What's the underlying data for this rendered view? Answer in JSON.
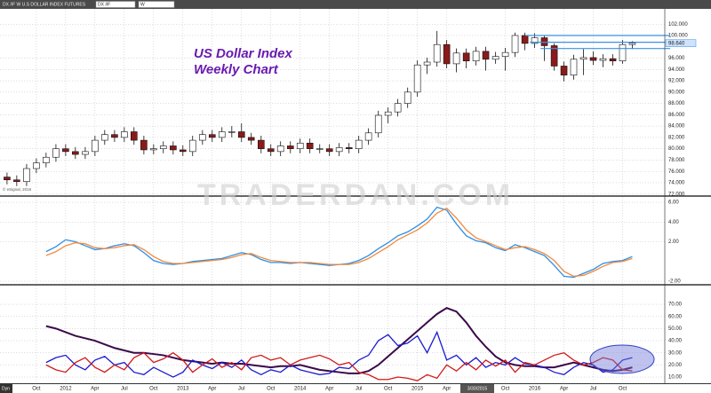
{
  "window": {
    "title": "DX #F W U.S DOLLAR INDEX FUTURES",
    "symbol": "DX #F",
    "interval": "W"
  },
  "chart_data": [
    {
      "type": "candlestick",
      "title": "US Dollar Index",
      "subtitle": "Weekly Chart",
      "title_color": "#6a1bb0",
      "watermark": "TRADERDAN.COM",
      "copyright": "© eSignal, 2016",
      "x": [
        2011.5,
        2011.583,
        2011.667,
        2011.75,
        2011.833,
        2011.917,
        2012.0,
        2012.083,
        2012.167,
        2012.25,
        2012.333,
        2012.417,
        2012.5,
        2012.583,
        2012.667,
        2012.75,
        2012.833,
        2012.917,
        2013.0,
        2013.083,
        2013.167,
        2013.25,
        2013.333,
        2013.417,
        2013.5,
        2013.583,
        2013.667,
        2013.75,
        2013.833,
        2013.917,
        2014.0,
        2014.083,
        2014.167,
        2014.25,
        2014.333,
        2014.417,
        2014.5,
        2014.583,
        2014.667,
        2014.75,
        2014.833,
        2014.917,
        2015.0,
        2015.083,
        2015.167,
        2015.25,
        2015.333,
        2015.417,
        2015.5,
        2015.583,
        2015.667,
        2015.75,
        2015.833,
        2015.917,
        2016.0,
        2016.083,
        2016.167,
        2016.25,
        2016.333,
        2016.417,
        2016.5,
        2016.583,
        2016.667,
        2016.75,
        2016.833
      ],
      "open": [
        75.0,
        74.5,
        74.2,
        76.5,
        77.5,
        78.5,
        80.0,
        79.5,
        79.0,
        79.5,
        81.5,
        82.5,
        82.0,
        83.0,
        81.5,
        79.8,
        80.0,
        80.5,
        79.8,
        79.5,
        81.5,
        82.5,
        82.0,
        83.0,
        83.0,
        82.0,
        81.5,
        80.0,
        79.5,
        80.5,
        80.0,
        81.0,
        80.0,
        80.0,
        79.5,
        80.2,
        80.0,
        81.5,
        82.8,
        85.9,
        86.5,
        88.0,
        90.0,
        94.8,
        95.3,
        98.4,
        95.0,
        96.9,
        95.5,
        97.2,
        95.8,
        96.3,
        97.0,
        100.0,
        98.6,
        99.6,
        98.2,
        94.6,
        93.0,
        95.8,
        96.1,
        95.6,
        95.9,
        95.5,
        98.4
      ],
      "high": [
        75.8,
        75.3,
        77.3,
        78.3,
        79.3,
        80.8,
        80.8,
        80.3,
        80.3,
        82.3,
        83.3,
        83.3,
        83.8,
        83.8,
        82.3,
        80.8,
        81.3,
        81.3,
        80.6,
        82.3,
        83.3,
        83.3,
        83.8,
        84.0,
        84.5,
        82.8,
        82.3,
        80.8,
        81.3,
        81.3,
        81.8,
        81.8,
        80.8,
        80.8,
        81.0,
        81.0,
        82.3,
        83.6,
        86.7,
        87.3,
        88.8,
        90.8,
        95.6,
        96.1,
        100.8,
        99.2,
        97.7,
        97.7,
        98.0,
        98.0,
        97.1,
        97.8,
        100.5,
        100.5,
        100.4,
        100.0,
        98.6,
        95.4,
        96.6,
        97.6,
        97.2,
        96.7,
        96.7,
        99.2,
        99.0
      ],
      "low": [
        73.7,
        73.4,
        73.4,
        75.7,
        76.7,
        77.7,
        78.7,
        78.2,
        78.2,
        78.7,
        80.7,
        81.2,
        81.2,
        80.7,
        79.0,
        79.0,
        79.2,
        79.0,
        78.7,
        78.7,
        80.7,
        81.2,
        81.2,
        82.0,
        81.2,
        80.7,
        79.2,
        78.7,
        78.7,
        79.2,
        79.2,
        79.2,
        79.2,
        78.7,
        78.7,
        79.2,
        79.2,
        80.7,
        82.0,
        84.5,
        85.7,
        87.2,
        89.2,
        93.2,
        94.5,
        94.2,
        93.5,
        94.2,
        94.7,
        93.8,
        95.0,
        93.8,
        96.2,
        97.4,
        97.8,
        95.5,
        93.8,
        91.9,
        92.2,
        93.0,
        94.8,
        94.4,
        94.7,
        95.0,
        97.6
      ],
      "close": [
        74.5,
        74.2,
        76.5,
        77.5,
        78.5,
        80.0,
        79.5,
        79.0,
        79.5,
        81.5,
        82.5,
        82.0,
        83.0,
        81.5,
        79.8,
        80.0,
        80.5,
        79.8,
        79.5,
        81.5,
        82.5,
        82.0,
        83.0,
        83.0,
        82.0,
        81.5,
        80.0,
        79.5,
        80.5,
        80.0,
        81.0,
        80.0,
        80.0,
        79.5,
        80.2,
        80.0,
        81.5,
        82.8,
        85.9,
        86.5,
        88.0,
        90.0,
        94.8,
        95.3,
        98.4,
        95.0,
        96.9,
        95.5,
        97.2,
        95.8,
        96.3,
        97.0,
        100.0,
        98.6,
        99.6,
        98.2,
        94.6,
        93.0,
        95.8,
        96.1,
        95.6,
        95.9,
        95.5,
        98.4,
        98.64
      ],
      "last_label": "98.640",
      "up_color": "#ffffff",
      "down_color": "#8b1a1a",
      "levels": [
        100.0,
        98.8,
        97.7
      ],
      "level_starts": [
        2015.92,
        2015.96,
        2016.05
      ],
      "level_color": "#3b8fe0",
      "xlim": [
        2011.44,
        2017.11
      ],
      "ylim": [
        71.8,
        104.7
      ],
      "yticks": [
        {
          "value": 72,
          "label": "72.000"
        },
        {
          "value": 74,
          "label": "74.000"
        },
        {
          "value": 76,
          "label": "76.000"
        },
        {
          "value": 78,
          "label": "78.000"
        },
        {
          "value": 80,
          "label": "80.000"
        },
        {
          "value": 82,
          "label": "82.000"
        },
        {
          "value": 84,
          "label": "84.000"
        },
        {
          "value": 86,
          "label": "86.000"
        },
        {
          "value": 88,
          "label": "88.000"
        },
        {
          "value": 90,
          "label": "90.000"
        },
        {
          "value": 92,
          "label": "92.000"
        },
        {
          "value": 94,
          "label": "94.000"
        },
        {
          "value": 96,
          "label": "96.000"
        },
        {
          "value": 100,
          "label": "100.000"
        },
        {
          "value": 102,
          "label": "102.000"
        }
      ],
      "grid": true
    },
    {
      "type": "line",
      "x": [
        2011.833,
        2011.917,
        2012.0,
        2012.083,
        2012.167,
        2012.25,
        2012.333,
        2012.417,
        2012.5,
        2012.583,
        2012.667,
        2012.75,
        2012.833,
        2012.917,
        2013.0,
        2013.083,
        2013.167,
        2013.25,
        2013.333,
        2013.417,
        2013.5,
        2013.583,
        2013.667,
        2013.75,
        2013.833,
        2013.917,
        2014.0,
        2014.083,
        2014.167,
        2014.25,
        2014.333,
        2014.417,
        2014.5,
        2014.583,
        2014.667,
        2014.75,
        2014.833,
        2014.917,
        2015.0,
        2015.083,
        2015.167,
        2015.25,
        2015.333,
        2015.417,
        2015.5,
        2015.583,
        2015.667,
        2015.75,
        2015.833,
        2015.917,
        2016.0,
        2016.083,
        2016.167,
        2016.25,
        2016.333,
        2016.417,
        2016.5,
        2016.583,
        2016.667,
        2016.75,
        2016.833
      ],
      "series": [
        {
          "color": "#2d8ee8",
          "values": [
            1.0,
            1.5,
            2.2,
            2.0,
            1.6,
            1.2,
            1.3,
            1.6,
            1.8,
            1.6,
            0.9,
            0.1,
            -0.2,
            -0.3,
            -0.2,
            0.0,
            0.1,
            0.2,
            0.3,
            0.6,
            0.9,
            0.7,
            0.2,
            -0.1,
            -0.1,
            -0.2,
            -0.1,
            -0.2,
            -0.3,
            -0.4,
            -0.3,
            -0.2,
            0.1,
            0.6,
            1.3,
            1.9,
            2.6,
            3.0,
            3.6,
            4.3,
            5.5,
            5.2,
            3.8,
            2.6,
            2.1,
            1.9,
            1.4,
            1.1,
            1.7,
            1.4,
            1.0,
            0.6,
            -0.4,
            -1.5,
            -1.6,
            -1.2,
            -0.8,
            -0.2,
            0.0,
            0.1,
            0.5
          ]
        },
        {
          "color": "#f08a3c",
          "values": [
            0.6,
            1.0,
            1.6,
            1.9,
            1.8,
            1.4,
            1.3,
            1.4,
            1.6,
            1.7,
            1.2,
            0.5,
            0.0,
            -0.2,
            -0.2,
            -0.1,
            0.0,
            0.1,
            0.2,
            0.4,
            0.7,
            0.8,
            0.4,
            0.1,
            0.0,
            -0.1,
            -0.1,
            -0.1,
            -0.2,
            -0.3,
            -0.3,
            -0.3,
            -0.1,
            0.3,
            0.9,
            1.5,
            2.2,
            2.7,
            3.2,
            3.9,
            4.9,
            5.4,
            4.4,
            3.2,
            2.4,
            2.0,
            1.6,
            1.2,
            1.4,
            1.5,
            1.2,
            0.8,
            0.1,
            -1.0,
            -1.5,
            -1.4,
            -1.0,
            -0.5,
            -0.1,
            0.0,
            0.3
          ]
        }
      ],
      "xlim": [
        2011.44,
        2017.11
      ],
      "ylim": [
        -2.27,
        6.54
      ],
      "yticks": [
        {
          "value": -2,
          "label": "-2.00"
        },
        {
          "value": 2,
          "label": "2.00"
        },
        {
          "value": 4,
          "label": "4.00"
        },
        {
          "value": 6,
          "label": "6.00"
        }
      ],
      "grid": true
    },
    {
      "type": "line",
      "x": [
        2011.833,
        2011.917,
        2012.0,
        2012.083,
        2012.167,
        2012.25,
        2012.333,
        2012.417,
        2012.5,
        2012.583,
        2012.667,
        2012.75,
        2012.833,
        2012.917,
        2013.0,
        2013.083,
        2013.167,
        2013.25,
        2013.333,
        2013.417,
        2013.5,
        2013.583,
        2013.667,
        2013.75,
        2013.833,
        2013.917,
        2014.0,
        2014.083,
        2014.167,
        2014.25,
        2014.333,
        2014.417,
        2014.5,
        2014.583,
        2014.667,
        2014.75,
        2014.833,
        2014.917,
        2015.0,
        2015.083,
        2015.167,
        2015.25,
        2015.333,
        2015.417,
        2015.5,
        2015.583,
        2015.667,
        2015.75,
        2015.833,
        2015.917,
        2016.0,
        2016.083,
        2016.167,
        2016.25,
        2016.333,
        2016.417,
        2016.5,
        2016.583,
        2016.667,
        2016.75,
        2016.833
      ],
      "series": [
        {
          "color": "#3a0a4a",
          "values": [
            52,
            50,
            47,
            44,
            42,
            40,
            37,
            34,
            32,
            30,
            30,
            29,
            28,
            26,
            24,
            23,
            22,
            21,
            22,
            21,
            21,
            20,
            19,
            18,
            19,
            19,
            20,
            18,
            16,
            15,
            14,
            13,
            13,
            15,
            20,
            27,
            34,
            41,
            48,
            55,
            62,
            67,
            64,
            55,
            44,
            35,
            27,
            22,
            20,
            19,
            19,
            18,
            18,
            20,
            22,
            20,
            18,
            16,
            15,
            16,
            18
          ]
        },
        {
          "color": "#1a1ad0",
          "values": [
            22,
            26,
            28,
            20,
            16,
            24,
            27,
            20,
            22,
            14,
            12,
            18,
            14,
            10,
            14,
            24,
            20,
            17,
            22,
            18,
            24,
            16,
            12,
            16,
            14,
            20,
            16,
            14,
            12,
            13,
            18,
            17,
            24,
            28,
            40,
            45,
            36,
            38,
            44,
            30,
            47,
            24,
            28,
            20,
            26,
            18,
            22,
            20,
            26,
            21,
            20,
            18,
            14,
            12,
            18,
            22,
            20,
            14,
            16,
            24,
            26
          ]
        },
        {
          "color": "#d01a1a",
          "values": [
            20,
            16,
            14,
            22,
            26,
            18,
            14,
            20,
            16,
            26,
            30,
            22,
            25,
            30,
            24,
            14,
            20,
            25,
            18,
            22,
            16,
            26,
            28,
            24,
            26,
            20,
            24,
            26,
            28,
            25,
            20,
            22,
            14,
            12,
            8,
            8,
            10,
            9,
            7,
            12,
            9,
            20,
            15,
            22,
            16,
            24,
            19,
            24,
            14,
            22,
            20,
            24,
            28,
            30,
            24,
            20,
            22,
            26,
            24,
            16,
            15
          ]
        }
      ],
      "xlim": [
        2011.44,
        2017.11
      ],
      "ylim": [
        4.9,
        85.4
      ],
      "yticks": [
        {
          "value": 10,
          "label": "10.00"
        },
        {
          "value": 20,
          "label": "20.00"
        },
        {
          "value": 30,
          "label": "30.00"
        },
        {
          "value": 40,
          "label": "40.00"
        },
        {
          "value": 50,
          "label": "50.00"
        },
        {
          "value": 60,
          "label": "60.00"
        },
        {
          "value": 70,
          "label": "70.00"
        }
      ],
      "xticks": [
        {
          "value": 2011.75,
          "label": "Oct"
        },
        2012,
        {
          "value": 2012.25,
          "label": "Apr"
        },
        {
          "value": 2012.5,
          "label": "Jul"
        },
        {
          "value": 2012.75,
          "label": "Oct"
        },
        2013,
        {
          "value": 2013.25,
          "label": "Apr"
        },
        {
          "value": 2013.5,
          "label": "Jul"
        },
        {
          "value": 2013.75,
          "label": "Oct"
        },
        2014,
        {
          "value": 2014.25,
          "label": "Apr"
        },
        {
          "value": 2014.5,
          "label": "Jul"
        },
        {
          "value": 2014.75,
          "label": "Oct"
        },
        2015,
        {
          "value": 2015.25,
          "label": "Apr"
        },
        {
          "value": 2015.75,
          "label": "Oct"
        },
        2016,
        {
          "value": 2016.25,
          "label": "Apr"
        },
        {
          "value": 2016.5,
          "label": "Jul"
        },
        {
          "value": 2016.75,
          "label": "Oct"
        }
      ],
      "cursor_label": "3/30/2015",
      "corner_label": "Dyn",
      "grid": true
    }
  ]
}
